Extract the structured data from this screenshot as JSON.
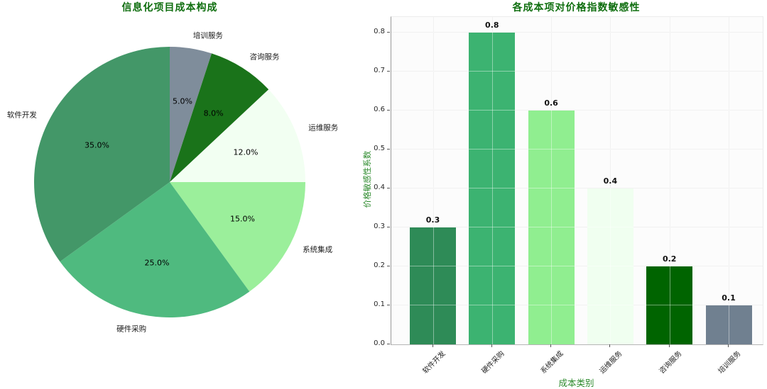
{
  "figure": {
    "background": "#ffffff",
    "title_color": "#0f6e0f",
    "axis_label_color": "#2e8b2e",
    "tick_label_color": "#262626",
    "grid_color": "#e7e7e7"
  },
  "chart_data": [
    {
      "type": "pie",
      "title": "信息化项目成本构成",
      "start_angle": "top",
      "direction": "clockwise",
      "slices": [
        {
          "label": "培训服务",
          "value_pct": 5.0,
          "pct_label": "5.0%",
          "color": "#7f8d9b"
        },
        {
          "label": "咨询服务",
          "value_pct": 8.0,
          "pct_label": "8.0%",
          "color": "#1a731a"
        },
        {
          "label": "运维服务",
          "value_pct": 12.0,
          "pct_label": "12.0%",
          "color": "#f2fff2"
        },
        {
          "label": "系统集成",
          "value_pct": 15.0,
          "pct_label": "15.0%",
          "color": "#9bef9b"
        },
        {
          "label": "硬件采购",
          "value_pct": 25.0,
          "pct_label": "25.0%",
          "color": "#4fba7f"
        },
        {
          "label": "软件开发",
          "value_pct": 35.0,
          "pct_label": "35.0%",
          "color": "#439768"
        }
      ]
    },
    {
      "type": "bar",
      "title": "各成本项对价格指数敏感性",
      "xlabel": "成本类别",
      "ylabel": "价格敏感性系数",
      "categories": [
        "软件开发",
        "硬件采购",
        "系统集成",
        "运维服务",
        "咨询服务",
        "培训服务"
      ],
      "values": [
        0.3,
        0.8,
        0.6,
        0.4,
        0.2,
        0.1
      ],
      "value_labels": [
        "0.3",
        "0.8",
        "0.6",
        "0.4",
        "0.2",
        "0.1"
      ],
      "bar_colors": [
        "#2e8b57",
        "#3cb371",
        "#90ee90",
        "#f0fff0",
        "#006400",
        "#708090"
      ],
      "yticks": [
        "0.0",
        "0.1",
        "0.2",
        "0.3",
        "0.4",
        "0.5",
        "0.6",
        "0.7",
        "0.8"
      ],
      "ylim": [
        0,
        0.84
      ],
      "grid": true,
      "legend": "none"
    }
  ]
}
